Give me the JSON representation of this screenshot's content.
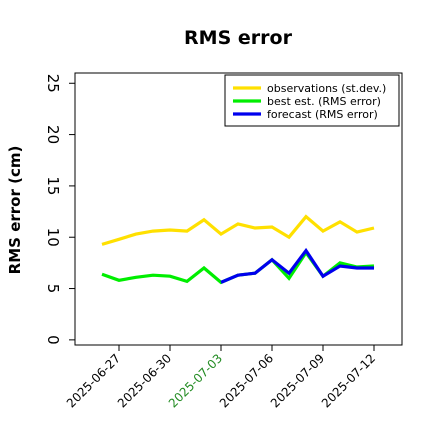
{
  "chart_data": {
    "type": "line",
    "title": "RMS error",
    "xlabel": "",
    "ylabel": "RMS error (cm)",
    "ylim": [
      -0.5,
      26
    ],
    "yticks": [
      0,
      5,
      10,
      15,
      20,
      25
    ],
    "xticks": [
      "2025-06-27",
      "2025-06-30",
      "2025-07-03",
      "2025-07-06",
      "2025-07-09",
      "2025-07-12"
    ],
    "xtick_colors": [
      "#000000",
      "#000000",
      "#228b22",
      "#000000",
      "#000000",
      "#000000"
    ],
    "x": [
      "2025-06-26",
      "2025-06-27",
      "2025-06-28",
      "2025-06-29",
      "2025-06-30",
      "2025-07-01",
      "2025-07-02",
      "2025-07-03",
      "2025-07-04",
      "2025-07-05",
      "2025-07-06",
      "2025-07-07",
      "2025-07-08",
      "2025-07-09",
      "2025-07-10",
      "2025-07-11",
      "2025-07-12"
    ],
    "legend_position": "top-right",
    "grid": false,
    "series": [
      {
        "name": "observations (st.dev.)",
        "color": "#ffe000",
        "values": [
          9.3,
          9.8,
          10.3,
          10.6,
          10.7,
          10.6,
          11.7,
          10.3,
          11.3,
          10.9,
          11.0,
          10.0,
          12.0,
          10.6,
          11.5,
          10.5,
          10.9
        ]
      },
      {
        "name": "best est. (RMS error)",
        "color": "#00ee00",
        "values": [
          6.4,
          5.8,
          6.1,
          6.3,
          6.2,
          5.7,
          7.0,
          5.6,
          6.3,
          6.5,
          7.8,
          6.0,
          8.5,
          6.2,
          7.5,
          7.1,
          7.2
        ]
      },
      {
        "name": "forecast (RMS error)",
        "color": "#0000ee",
        "start_index": 7,
        "values": [
          null,
          null,
          null,
          null,
          null,
          null,
          null,
          5.6,
          6.3,
          6.5,
          7.8,
          6.5,
          8.7,
          6.2,
          7.2,
          7.0,
          7.0
        ]
      }
    ]
  }
}
